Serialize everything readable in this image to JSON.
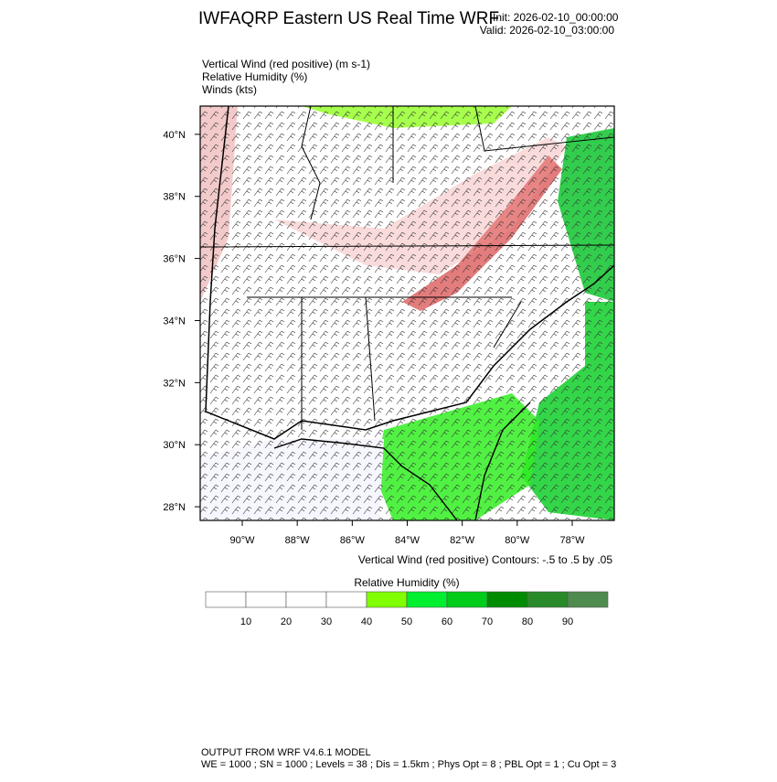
{
  "header": {
    "title": "IWFAQRP Eastern US Real Time WRF",
    "init": "Init: 2026-02-10_00:00:00",
    "valid": "Valid: 2026-02-10_03:00:00"
  },
  "fields": [
    "Vertical Wind (red positive)   (m s-1)",
    "Relative Humidity   (%)",
    "Winds   (kts)"
  ],
  "map": {
    "ylim": [
      27.56,
      40.91
    ],
    "xlim": [
      -91.53,
      -76.47
    ],
    "yticks": [
      {
        "value": 28,
        "label": "28°N"
      },
      {
        "value": 30,
        "label": "30°N"
      },
      {
        "value": 32,
        "label": "32°N"
      },
      {
        "value": 34,
        "label": "34°N"
      },
      {
        "value": 36,
        "label": "36°N"
      },
      {
        "value": 38,
        "label": "38°N"
      },
      {
        "value": 40,
        "label": "40°N"
      }
    ],
    "xticks": [
      {
        "value": -90,
        "label": "90°W"
      },
      {
        "value": -88,
        "label": "88°W"
      },
      {
        "value": -86,
        "label": "86°W"
      },
      {
        "value": -84,
        "label": "84°W"
      },
      {
        "value": -82,
        "label": "82°W"
      },
      {
        "value": -80,
        "label": "80°W"
      },
      {
        "value": -78,
        "label": "78°W"
      }
    ]
  },
  "contour_note": "Vertical Wind (red positive) Contours: -.5 to .5 by .05",
  "colorbar": {
    "title": "Relative Humidity  (%)",
    "levels": [
      10,
      20,
      30,
      40,
      50,
      60,
      70,
      80,
      90
    ],
    "colors": [
      "#ffffff",
      "#ffffff",
      "#ffffff",
      "#ffffff",
      "#80ff00",
      "#00f030",
      "#00cc1a",
      "#008c00",
      "#288a28",
      "#4f8a4f"
    ]
  },
  "footer": [
    "OUTPUT FROM WRF V4.6.1 MODEL",
    "WE = 1000 ; SN = 1000 ; Levels = 38 ; Dis = 1.5km ; Phys Opt = 8 ; PBL Opt = 1 ; Cu Opt = 3"
  ]
}
